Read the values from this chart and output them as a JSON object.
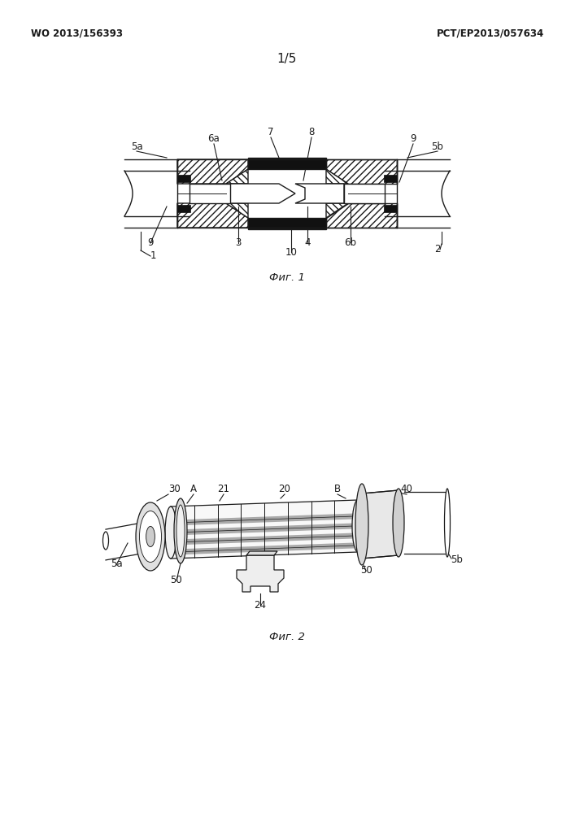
{
  "bg_color": "#ffffff",
  "line_color": "#1a1a1a",
  "header_left": "WO 2013/156393",
  "header_right": "PCT/EP2013/057634",
  "page_num": "1/5",
  "fig1_caption": "Фиг. 1",
  "fig2_caption": "Фиг. 2",
  "fig_width": 7.07,
  "fig_height": 10.0
}
